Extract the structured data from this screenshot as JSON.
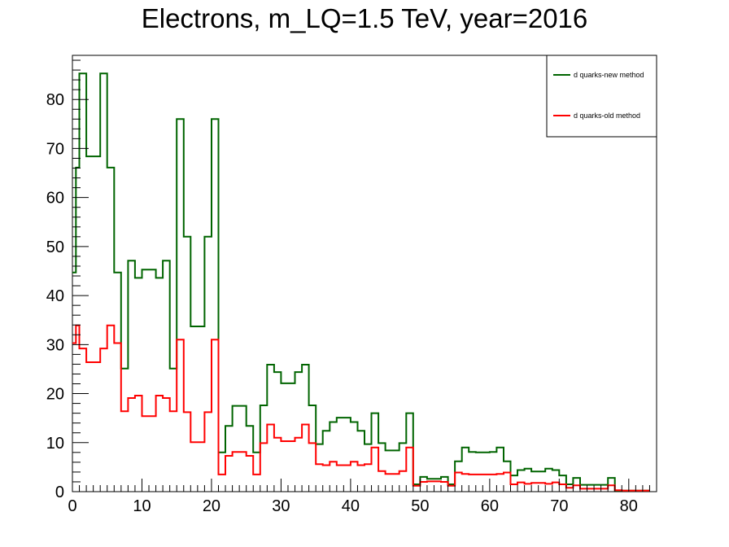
{
  "chart_data": {
    "type": "line",
    "title": "Electrons, m_LQ=1.5 TeV, year=2016",
    "xlabel": "",
    "ylabel": "",
    "xlim": [
      0,
      84
    ],
    "ylim": [
      0,
      89
    ],
    "x_tick_labels": [
      "0",
      "10",
      "20",
      "30",
      "40",
      "50",
      "60",
      "70",
      "80"
    ],
    "y_tick_labels": [
      "0",
      "10",
      "20",
      "30",
      "40",
      "50",
      "60",
      "70",
      "80"
    ],
    "legend_position": "top-right",
    "style": "step histogram",
    "bin_edges": [
      0,
      0.5,
      1,
      2,
      3,
      4,
      5,
      6,
      7,
      8,
      9,
      10,
      11,
      12,
      13,
      14,
      15,
      16,
      17,
      18,
      19,
      20,
      21,
      22,
      23,
      24,
      25,
      26,
      27,
      28,
      29,
      30,
      31,
      32,
      33,
      34,
      35,
      36,
      37,
      38,
      39,
      40,
      41,
      42,
      43,
      44,
      45,
      46,
      47,
      48,
      49,
      50,
      51,
      52,
      53,
      54,
      55,
      56,
      57,
      58,
      59,
      60,
      61,
      62,
      63,
      64,
      65,
      66,
      67,
      68,
      69,
      70,
      71,
      72,
      73,
      74,
      75,
      76,
      77,
      78,
      79,
      80,
      81,
      82,
      83,
      84
    ],
    "series": [
      {
        "name": "d quarks-new method",
        "color": "#006400",
        "values": [
          44.7,
          66.1,
          85.3,
          68.4,
          68.4,
          85.3,
          66.1,
          44.7,
          25.1,
          47.1,
          43.6,
          45.3,
          45.3,
          43.6,
          47.1,
          25.1,
          76.0,
          52.0,
          33.7,
          33.7,
          52.0,
          76.0,
          8.0,
          13.4,
          17.5,
          17.5,
          13.4,
          8.0,
          17.6,
          25.9,
          24.4,
          22.1,
          22.1,
          24.4,
          25.9,
          17.6,
          9.7,
          12.4,
          14.2,
          15.1,
          15.1,
          14.2,
          12.4,
          9.7,
          16.0,
          9.9,
          8.4,
          8.4,
          9.9,
          16.0,
          1.5,
          3.0,
          2.6,
          2.6,
          3.0,
          1.5,
          6.2,
          9.0,
          8.1,
          8.0,
          8.0,
          8.1,
          9.0,
          6.2,
          3.3,
          4.4,
          4.7,
          4.1,
          4.1,
          4.7,
          4.4,
          3.3,
          1.5,
          2.8,
          1.4,
          1.4,
          1.4,
          1.4,
          2.8,
          0.2,
          0.2,
          0.2,
          0.2,
          0.2
        ]
      },
      {
        "name": "d quarks-old method",
        "color": "#ff0000",
        "values": [
          30.3,
          33.9,
          29.2,
          26.4,
          26.4,
          29.2,
          33.9,
          30.3,
          16.4,
          19.1,
          19.6,
          15.4,
          15.4,
          19.6,
          19.1,
          16.4,
          31.0,
          16.2,
          10.1,
          10.1,
          16.2,
          31.0,
          3.5,
          7.3,
          8.1,
          8.1,
          7.3,
          3.5,
          9.9,
          13.7,
          11.0,
          10.3,
          10.3,
          11.0,
          13.7,
          9.9,
          5.6,
          5.4,
          6.1,
          5.4,
          5.4,
          6.1,
          5.4,
          5.6,
          9.0,
          4.2,
          3.6,
          3.6,
          4.2,
          9.0,
          1.2,
          2.0,
          2.1,
          2.1,
          2.0,
          1.2,
          3.9,
          3.6,
          3.5,
          3.5,
          3.5,
          3.5,
          3.6,
          3.9,
          1.5,
          1.9,
          1.6,
          1.8,
          1.8,
          1.6,
          1.9,
          1.5,
          0.8,
          1.3,
          0.6,
          0.6,
          0.6,
          0.6,
          1.3,
          0.3,
          0.2,
          0.2,
          0.2,
          0.2
        ]
      }
    ]
  }
}
